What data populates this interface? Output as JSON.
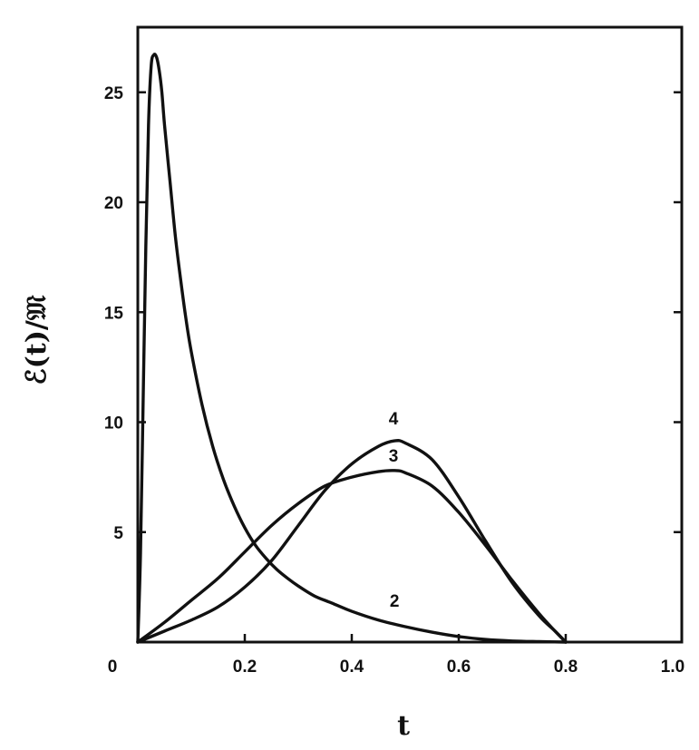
{
  "chart_data": {
    "type": "line",
    "title": "",
    "xlabel": "t",
    "ylabel": "ℰ(t)/𝔐",
    "xlim": [
      0,
      1.0
    ],
    "ylim": [
      0,
      28
    ],
    "x_ticks": [
      "0",
      "0.2",
      "0.4",
      "0.6",
      "0.8",
      "1.0"
    ],
    "y_ticks": [
      "5",
      "10",
      "15",
      "20",
      "25"
    ],
    "grid": false,
    "legend": "none",
    "series": [
      {
        "name": "2",
        "x": [
          0.0,
          0.005,
          0.01,
          0.015,
          0.02,
          0.025,
          0.03,
          0.035,
          0.04,
          0.045,
          0.05,
          0.06,
          0.07,
          0.08,
          0.09,
          0.1,
          0.12,
          0.14,
          0.16,
          0.18,
          0.2,
          0.22,
          0.24,
          0.26,
          0.28,
          0.3,
          0.33,
          0.36,
          0.4,
          0.45,
          0.5,
          0.55,
          0.6,
          0.65,
          0.7,
          0.75,
          0.8
        ],
        "y": [
          0.0,
          4.0,
          11.0,
          18.0,
          23.5,
          26.2,
          26.7,
          26.6,
          26.0,
          25.0,
          23.5,
          21.0,
          18.5,
          16.5,
          14.7,
          13.2,
          10.8,
          8.9,
          7.4,
          6.2,
          5.2,
          4.4,
          3.8,
          3.3,
          2.9,
          2.55,
          2.1,
          1.8,
          1.4,
          1.0,
          0.7,
          0.45,
          0.25,
          0.12,
          0.05,
          0.02,
          0.0
        ]
      },
      {
        "name": "3",
        "x": [
          0.0,
          0.05,
          0.1,
          0.15,
          0.2,
          0.25,
          0.3,
          0.35,
          0.4,
          0.45,
          0.48,
          0.5,
          0.55,
          0.6,
          0.65,
          0.7,
          0.75,
          0.78,
          0.8
        ],
        "y": [
          0.0,
          0.9,
          1.9,
          2.9,
          4.1,
          5.3,
          6.3,
          7.1,
          7.5,
          7.75,
          7.8,
          7.7,
          7.1,
          5.9,
          4.4,
          2.8,
          1.3,
          0.5,
          0.0
        ]
      },
      {
        "name": "4",
        "x": [
          0.0,
          0.05,
          0.1,
          0.15,
          0.2,
          0.25,
          0.3,
          0.35,
          0.4,
          0.45,
          0.48,
          0.5,
          0.55,
          0.6,
          0.65,
          0.7,
          0.75,
          0.78,
          0.8
        ],
        "y": [
          0.0,
          0.5,
          1.0,
          1.6,
          2.5,
          3.7,
          5.3,
          6.9,
          8.1,
          8.9,
          9.15,
          9.05,
          8.3,
          6.6,
          4.6,
          2.7,
          1.2,
          0.5,
          0.0
        ]
      }
    ],
    "curve_labels": [
      {
        "name": "4",
        "x": 0.478,
        "y": 9.9
      },
      {
        "name": "3",
        "x": 0.478,
        "y": 8.2
      },
      {
        "name": "2",
        "x": 0.48,
        "y": 1.6
      }
    ]
  }
}
